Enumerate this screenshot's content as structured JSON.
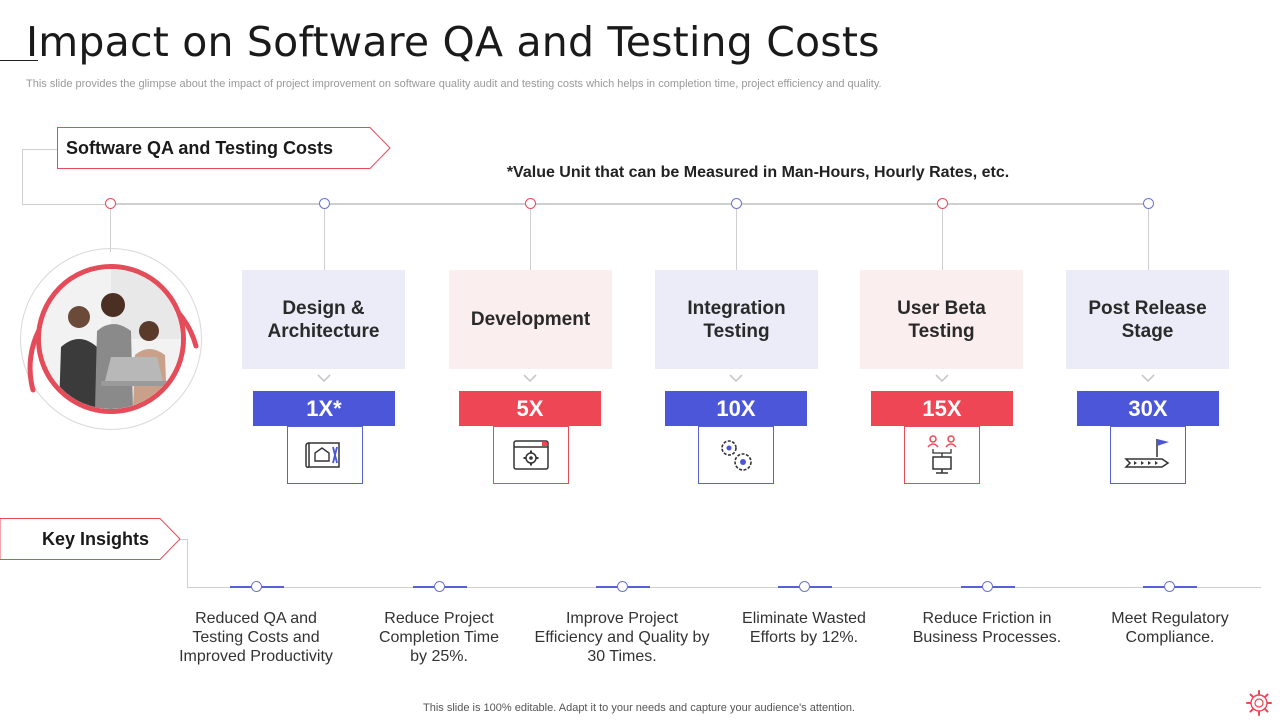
{
  "title": "Impact on Software QA and Testing Costs",
  "subtitle": "This slide provides the glimpse about the impact of project improvement on software quality audit and testing costs which helps in completion time, project efficiency and quality.",
  "section_tag": "Software QA and Testing Costs",
  "value_note": "*Value Unit that can be Measured in Man-Hours, Hourly Rates, etc.",
  "stages": [
    {
      "label": "Design & Architecture",
      "multiplier": "1X*",
      "icon": "blueprint-icon",
      "color": "#4b57d8"
    },
    {
      "label": "Development",
      "multiplier": "5X",
      "icon": "browser-gear-icon",
      "color": "#ef4656"
    },
    {
      "label": "Integration Testing",
      "multiplier": "10X",
      "icon": "gears-icon",
      "color": "#4b57d8"
    },
    {
      "label": "User Beta Testing",
      "multiplier": "15X",
      "icon": "users-computer-icon",
      "color": "#ef4656"
    },
    {
      "label": "Post Release Stage",
      "multiplier": "30X",
      "icon": "flag-path-icon",
      "color": "#4b57d8"
    }
  ],
  "insights_tag": "Key Insights",
  "insights": [
    "Reduced QA and Testing Costs and Improved Productivity",
    "Reduce Project Completion Time by 25%.",
    "Improve Project Efficiency and Quality by 30 Times.",
    "Eliminate Wasted Efforts by 12%.",
    "Reduce Friction in Business Processes.",
    "Meet Regulatory Compliance."
  ],
  "footer": "This slide is 100% editable. Adapt it to your needs and capture your audience's attention.",
  "colors": {
    "accent_red": "#ef4656",
    "accent_blue": "#4b57d8",
    "box_blue": "#ebecf8",
    "box_pink": "#fbeeee"
  }
}
